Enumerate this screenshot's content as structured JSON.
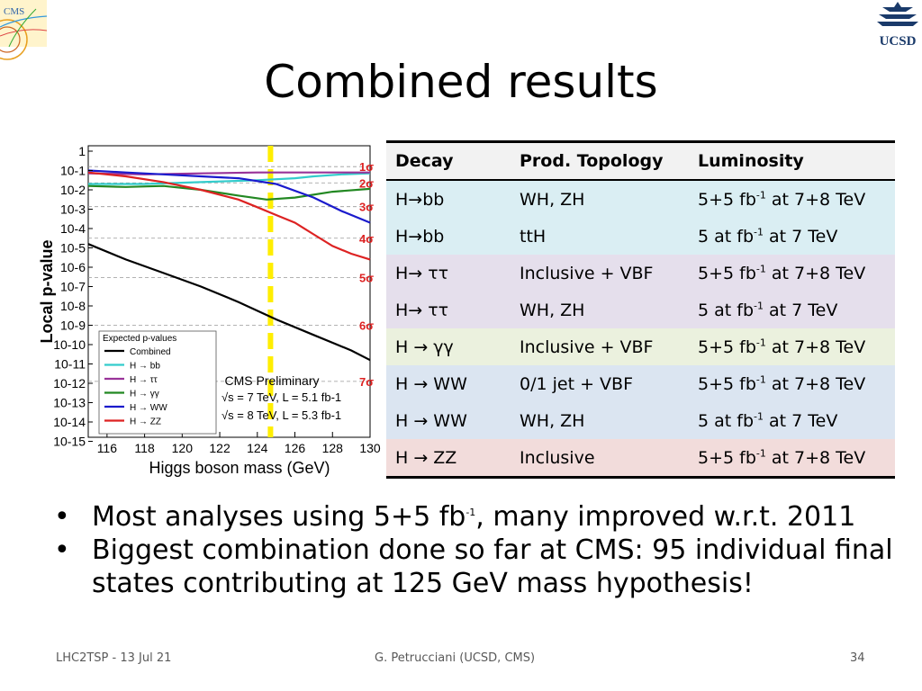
{
  "header": {
    "title": "Combined results"
  },
  "logos": {
    "left_text": "CMS",
    "right_text": "UCSD"
  },
  "chart_data": {
    "type": "line",
    "xlabel": "Higgs boson mass (GeV)",
    "ylabel": "Local p-value",
    "xlim": [
      115,
      130
    ],
    "ylog": true,
    "x_ticks": [
      "116",
      "118",
      "120",
      "122",
      "124",
      "126",
      "128",
      "130"
    ],
    "y_ticks": [
      "1",
      "10-1",
      "10-2",
      "10-3",
      "10-4",
      "10-5",
      "10-6",
      "10-7",
      "10-8",
      "10-9",
      "10-10",
      "10-11",
      "10-12",
      "10-13",
      "10-14",
      "10-15"
    ],
    "sigma_labels": [
      "1σ",
      "2σ",
      "3σ",
      "4σ",
      "5σ",
      "6σ",
      "7σ"
    ],
    "legend": {
      "header": "Expected p-values",
      "entries": [
        "Combined",
        "H → bb",
        "H → ττ",
        "H → γγ",
        "H → WW",
        "H → ZZ"
      ]
    },
    "annotation": {
      "title": "CMS Preliminary",
      "line1": "√s = 7 TeV, L = 5.1 fb-1",
      "line2": "√s = 8 TeV, L = 5.3 fb-1"
    },
    "series": [
      {
        "name": "Combined",
        "color": "#000000",
        "x": [
          115,
          117,
          119,
          121,
          123,
          125,
          127,
          129,
          130
        ],
        "y": [
          -4.8,
          -5.6,
          -6.3,
          -7.0,
          -7.8,
          -8.7,
          -9.5,
          -10.3,
          -10.8
        ]
      },
      {
        "name": "H → bb",
        "color": "#33cccc",
        "x": [
          115,
          118,
          121,
          124,
          126,
          127,
          128.5,
          130
        ],
        "y": [
          -1.7,
          -1.7,
          -1.6,
          -1.5,
          -1.4,
          -1.3,
          -1.2,
          -1.15
        ]
      },
      {
        "name": "H → ττ",
        "color": "#993399",
        "x": [
          115,
          118,
          121,
          124,
          127,
          130
        ],
        "y": [
          -1.15,
          -1.2,
          -1.15,
          -1.1,
          -1.1,
          -1.1
        ]
      },
      {
        "name": "H → γγ",
        "color": "#228822",
        "x": [
          115,
          117,
          119,
          121,
          123,
          124.5,
          126,
          128,
          130
        ],
        "y": [
          -1.8,
          -1.85,
          -1.8,
          -2.0,
          -2.3,
          -2.5,
          -2.4,
          -2.1,
          -1.95
        ]
      },
      {
        "name": "H → WW",
        "color": "#1a1acc",
        "x": [
          115,
          117,
          119,
          121,
          123,
          125,
          127,
          128.5,
          130
        ],
        "y": [
          -1.0,
          -1.1,
          -1.2,
          -1.3,
          -1.4,
          -1.7,
          -2.4,
          -3.1,
          -3.7
        ]
      },
      {
        "name": "H → ZZ",
        "color": "#dd2222",
        "x": [
          115,
          117,
          119,
          121,
          123,
          124,
          125,
          126,
          127,
          128,
          129,
          130
        ],
        "y": [
          -1.1,
          -1.3,
          -1.6,
          -2.0,
          -2.5,
          -2.9,
          -3.3,
          -3.7,
          -4.3,
          -4.9,
          -5.3,
          -5.6
        ]
      }
    ],
    "vline_x": 124.7,
    "vline_color": "#ffee00"
  },
  "table": {
    "headers": [
      "Decay",
      "Prod. Topology",
      "Luminosity"
    ],
    "rows": [
      {
        "decay": "H→bb",
        "topology": "WH, ZH",
        "lumi_a": "5+5 fb",
        "lumi_sup": "-1",
        "lumi_b": " at 7+8 TeV",
        "bg": "#daeef3"
      },
      {
        "decay": "H→bb",
        "topology": "ttH",
        "lumi_a": "5 at fb",
        "lumi_sup": "-1",
        "lumi_b": " at 7 TeV",
        "bg": "#daeef3"
      },
      {
        "decay": "H→ ττ",
        "topology": "Inclusive + VBF",
        "lumi_a": "5+5 fb",
        "lumi_sup": "-1",
        "lumi_b": " at 7+8 TeV",
        "bg": "#e5dfec"
      },
      {
        "decay": "H→ ττ",
        "topology": "WH, ZH",
        "lumi_a": "5 at fb",
        "lumi_sup": "-1",
        "lumi_b": " at 7 TeV",
        "bg": "#e5dfec"
      },
      {
        "decay": "H → γγ",
        "topology": "Inclusive + VBF",
        "lumi_a": "5+5 fb",
        "lumi_sup": "-1",
        "lumi_b": " at 7+8 TeV",
        "bg": "#ebf1de"
      },
      {
        "decay": "H → WW",
        "topology": "0/1 jet + VBF",
        "lumi_a": "5+5 fb",
        "lumi_sup": "-1",
        "lumi_b": " at 7+8 TeV",
        "bg": "#dbe5f1"
      },
      {
        "decay": "H → WW",
        "topology": "WH, ZH",
        "lumi_a": "5 at fb",
        "lumi_sup": "-1",
        "lumi_b": " at 7 TeV",
        "bg": "#dbe5f1"
      },
      {
        "decay": "H → ZZ",
        "topology": "Inclusive",
        "lumi_a": "5+5 fb",
        "lumi_sup": "-1",
        "lumi_b": " at 7+8 TeV",
        "bg": "#f2dcdb"
      }
    ]
  },
  "bullets": [
    {
      "a": "Most analyses using 5+5 fb",
      "sup": "-1",
      "b": ", many improved w.r.t. 2011"
    },
    {
      "a": "Biggest combination done so far at CMS: 95 individual final states contributing at 125 GeV mass hypothesis!",
      "sup": "",
      "b": ""
    }
  ],
  "bullet_char": "•",
  "footer": {
    "left": "LHC2TSP - 13 Jul 21",
    "center": "G. Petrucciani (UCSD, CMS)",
    "page": "34"
  }
}
